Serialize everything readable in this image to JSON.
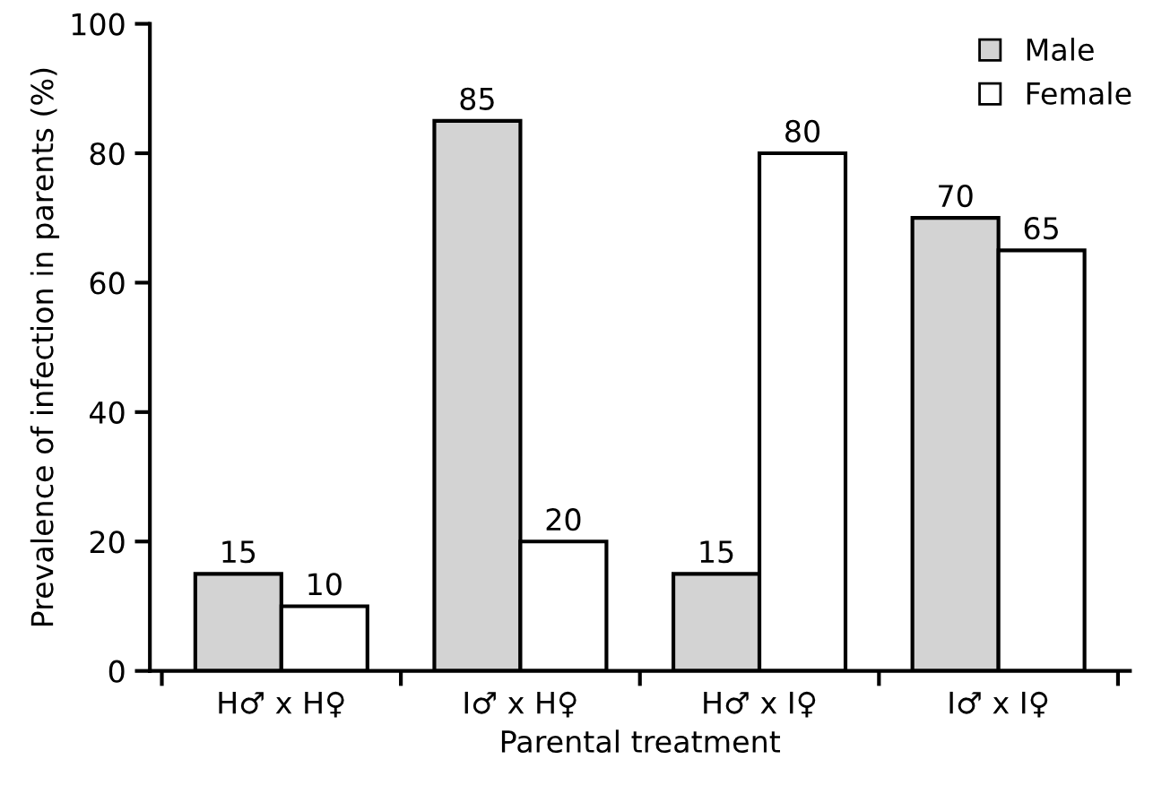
{
  "chart_data": {
    "type": "bar",
    "xlabel": "Parental treatment",
    "ylabel": "Prevalence of infection in parents (%)",
    "categories": [
      "H♂ x H♀",
      "I♂ x H♀",
      "H♂ x I♀",
      "I♂ x I♀"
    ],
    "series": [
      {
        "name": "Male",
        "color": "#d3d3d3",
        "values": [
          15,
          85,
          15,
          70
        ]
      },
      {
        "name": "Female",
        "color": "#ffffff",
        "values": [
          10,
          20,
          80,
          65
        ]
      }
    ],
    "ylim": [
      0,
      100
    ],
    "yticks": [
      0,
      20,
      40,
      60,
      80,
      100
    ],
    "grid": false,
    "legend": "top right",
    "data_labels": true
  }
}
